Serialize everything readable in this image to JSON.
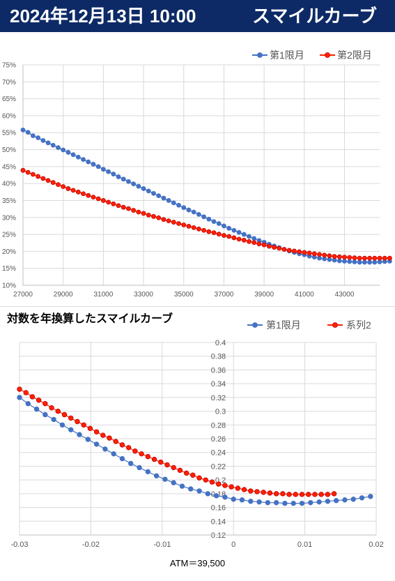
{
  "header": {
    "date": "2024年12月13日 10:00",
    "title": "スマイルカーブ"
  },
  "colors": {
    "header_bg": "#0d2a66",
    "series1": "#4472c4",
    "series2": "#ff2000",
    "series2_outline": "#c00000",
    "grid": "#d9d9d9"
  },
  "chart_data": [
    {
      "type": "line",
      "title": "",
      "legend_position": "top-right",
      "grid": true,
      "x_ticks": [
        "27000",
        "29000",
        "31000",
        "33000",
        "35000",
        "37000",
        "39000",
        "41000",
        "43000"
      ],
      "y_ticks": [
        "10%",
        "15%",
        "20%",
        "25%",
        "30%",
        "35%",
        "40%",
        "45%",
        "50%",
        "55%",
        "60%",
        "65%",
        "70%",
        "75%"
      ],
      "xlim": [
        27000,
        44750
      ],
      "ylim": [
        0.1,
        0.75
      ],
      "series": [
        {
          "name": "第1限月",
          "x_start": 27000,
          "x_step": 250,
          "values": [
            0.558,
            0.551,
            0.541,
            0.535,
            0.527,
            0.52,
            0.513,
            0.506,
            0.499,
            0.492,
            0.485,
            0.478,
            0.471,
            0.464,
            0.457,
            0.45,
            0.442,
            0.435,
            0.428,
            0.42,
            0.413,
            0.406,
            0.399,
            0.392,
            0.385,
            0.378,
            0.371,
            0.364,
            0.357,
            0.35,
            0.343,
            0.336,
            0.329,
            0.322,
            0.316,
            0.309,
            0.302,
            0.295,
            0.288,
            0.282,
            0.275,
            0.268,
            0.262,
            0.256,
            0.25,
            0.244,
            0.238,
            0.232,
            0.227,
            0.221,
            0.216,
            0.211,
            0.206,
            0.201,
            0.197,
            0.193,
            0.19,
            0.186,
            0.183,
            0.18,
            0.178,
            0.176,
            0.174,
            0.172,
            0.171,
            0.17,
            0.169,
            0.168,
            0.168,
            0.168,
            0.168,
            0.169,
            0.17,
            0.171
          ]
        },
        {
          "name": "第2限月",
          "x_start": 27000,
          "x_step": 250,
          "values": [
            0.439,
            0.433,
            0.427,
            0.421,
            0.415,
            0.409,
            0.403,
            0.397,
            0.391,
            0.385,
            0.38,
            0.375,
            0.37,
            0.365,
            0.36,
            0.355,
            0.35,
            0.345,
            0.34,
            0.335,
            0.33,
            0.326,
            0.321,
            0.316,
            0.312,
            0.307,
            0.303,
            0.299,
            0.294,
            0.29,
            0.286,
            0.282,
            0.278,
            0.274,
            0.27,
            0.266,
            0.262,
            0.258,
            0.255,
            0.251,
            0.247,
            0.244,
            0.24,
            0.236,
            0.233,
            0.229,
            0.226,
            0.222,
            0.219,
            0.215,
            0.212,
            0.209,
            0.206,
            0.203,
            0.201,
            0.199,
            0.197,
            0.195,
            0.193,
            0.191,
            0.189,
            0.187,
            0.185,
            0.184,
            0.183,
            0.182,
            0.181,
            0.18,
            0.18,
            0.18,
            0.18,
            0.18,
            0.18,
            0.18
          ]
        }
      ]
    },
    {
      "type": "line",
      "title": "対数を年換算したスマイルカーブ",
      "xlabel": "ATM＝39,500",
      "legend_position": "top-right",
      "grid": true,
      "x_ticks": [
        "-0.03",
        "-0.02",
        "-0.01",
        "0",
        "0.01",
        "0.02"
      ],
      "y_ticks": [
        "0.12",
        "0.14",
        "0.16",
        "0.18",
        "0.2",
        "0.22",
        "0.24",
        "0.26",
        "0.28",
        "0.3",
        "0.32",
        "0.34",
        "0.36",
        "0.38",
        "0.4"
      ],
      "xlim": [
        -0.03,
        0.02
      ],
      "ylim": [
        0.12,
        0.4
      ],
      "series": [
        {
          "name": "第1限月",
          "x_start": -0.03,
          "x_step": 0.0012,
          "values": [
            0.32,
            0.311,
            0.303,
            0.295,
            0.288,
            0.28,
            0.273,
            0.266,
            0.259,
            0.252,
            0.245,
            0.238,
            0.231,
            0.224,
            0.218,
            0.212,
            0.206,
            0.201,
            0.196,
            0.191,
            0.187,
            0.184,
            0.18,
            0.177,
            0.175,
            0.172,
            0.171,
            0.169,
            0.168,
            0.167,
            0.167,
            0.166,
            0.166,
            0.166,
            0.167,
            0.168,
            0.169,
            0.17,
            0.171,
            0.172,
            0.174,
            0.176
          ]
        },
        {
          "name": "系列2",
          "x_start": -0.03,
          "x_step": 0.0009,
          "values": [
            0.332,
            0.327,
            0.321,
            0.316,
            0.311,
            0.305,
            0.3,
            0.295,
            0.29,
            0.285,
            0.28,
            0.275,
            0.27,
            0.265,
            0.261,
            0.256,
            0.251,
            0.247,
            0.242,
            0.238,
            0.234,
            0.23,
            0.226,
            0.222,
            0.218,
            0.214,
            0.21,
            0.207,
            0.203,
            0.2,
            0.197,
            0.194,
            0.192,
            0.19,
            0.188,
            0.186,
            0.184,
            0.183,
            0.182,
            0.181,
            0.18,
            0.18,
            0.179,
            0.179,
            0.179,
            0.179,
            0.179,
            0.179,
            0.179,
            0.18
          ]
        }
      ]
    }
  ]
}
